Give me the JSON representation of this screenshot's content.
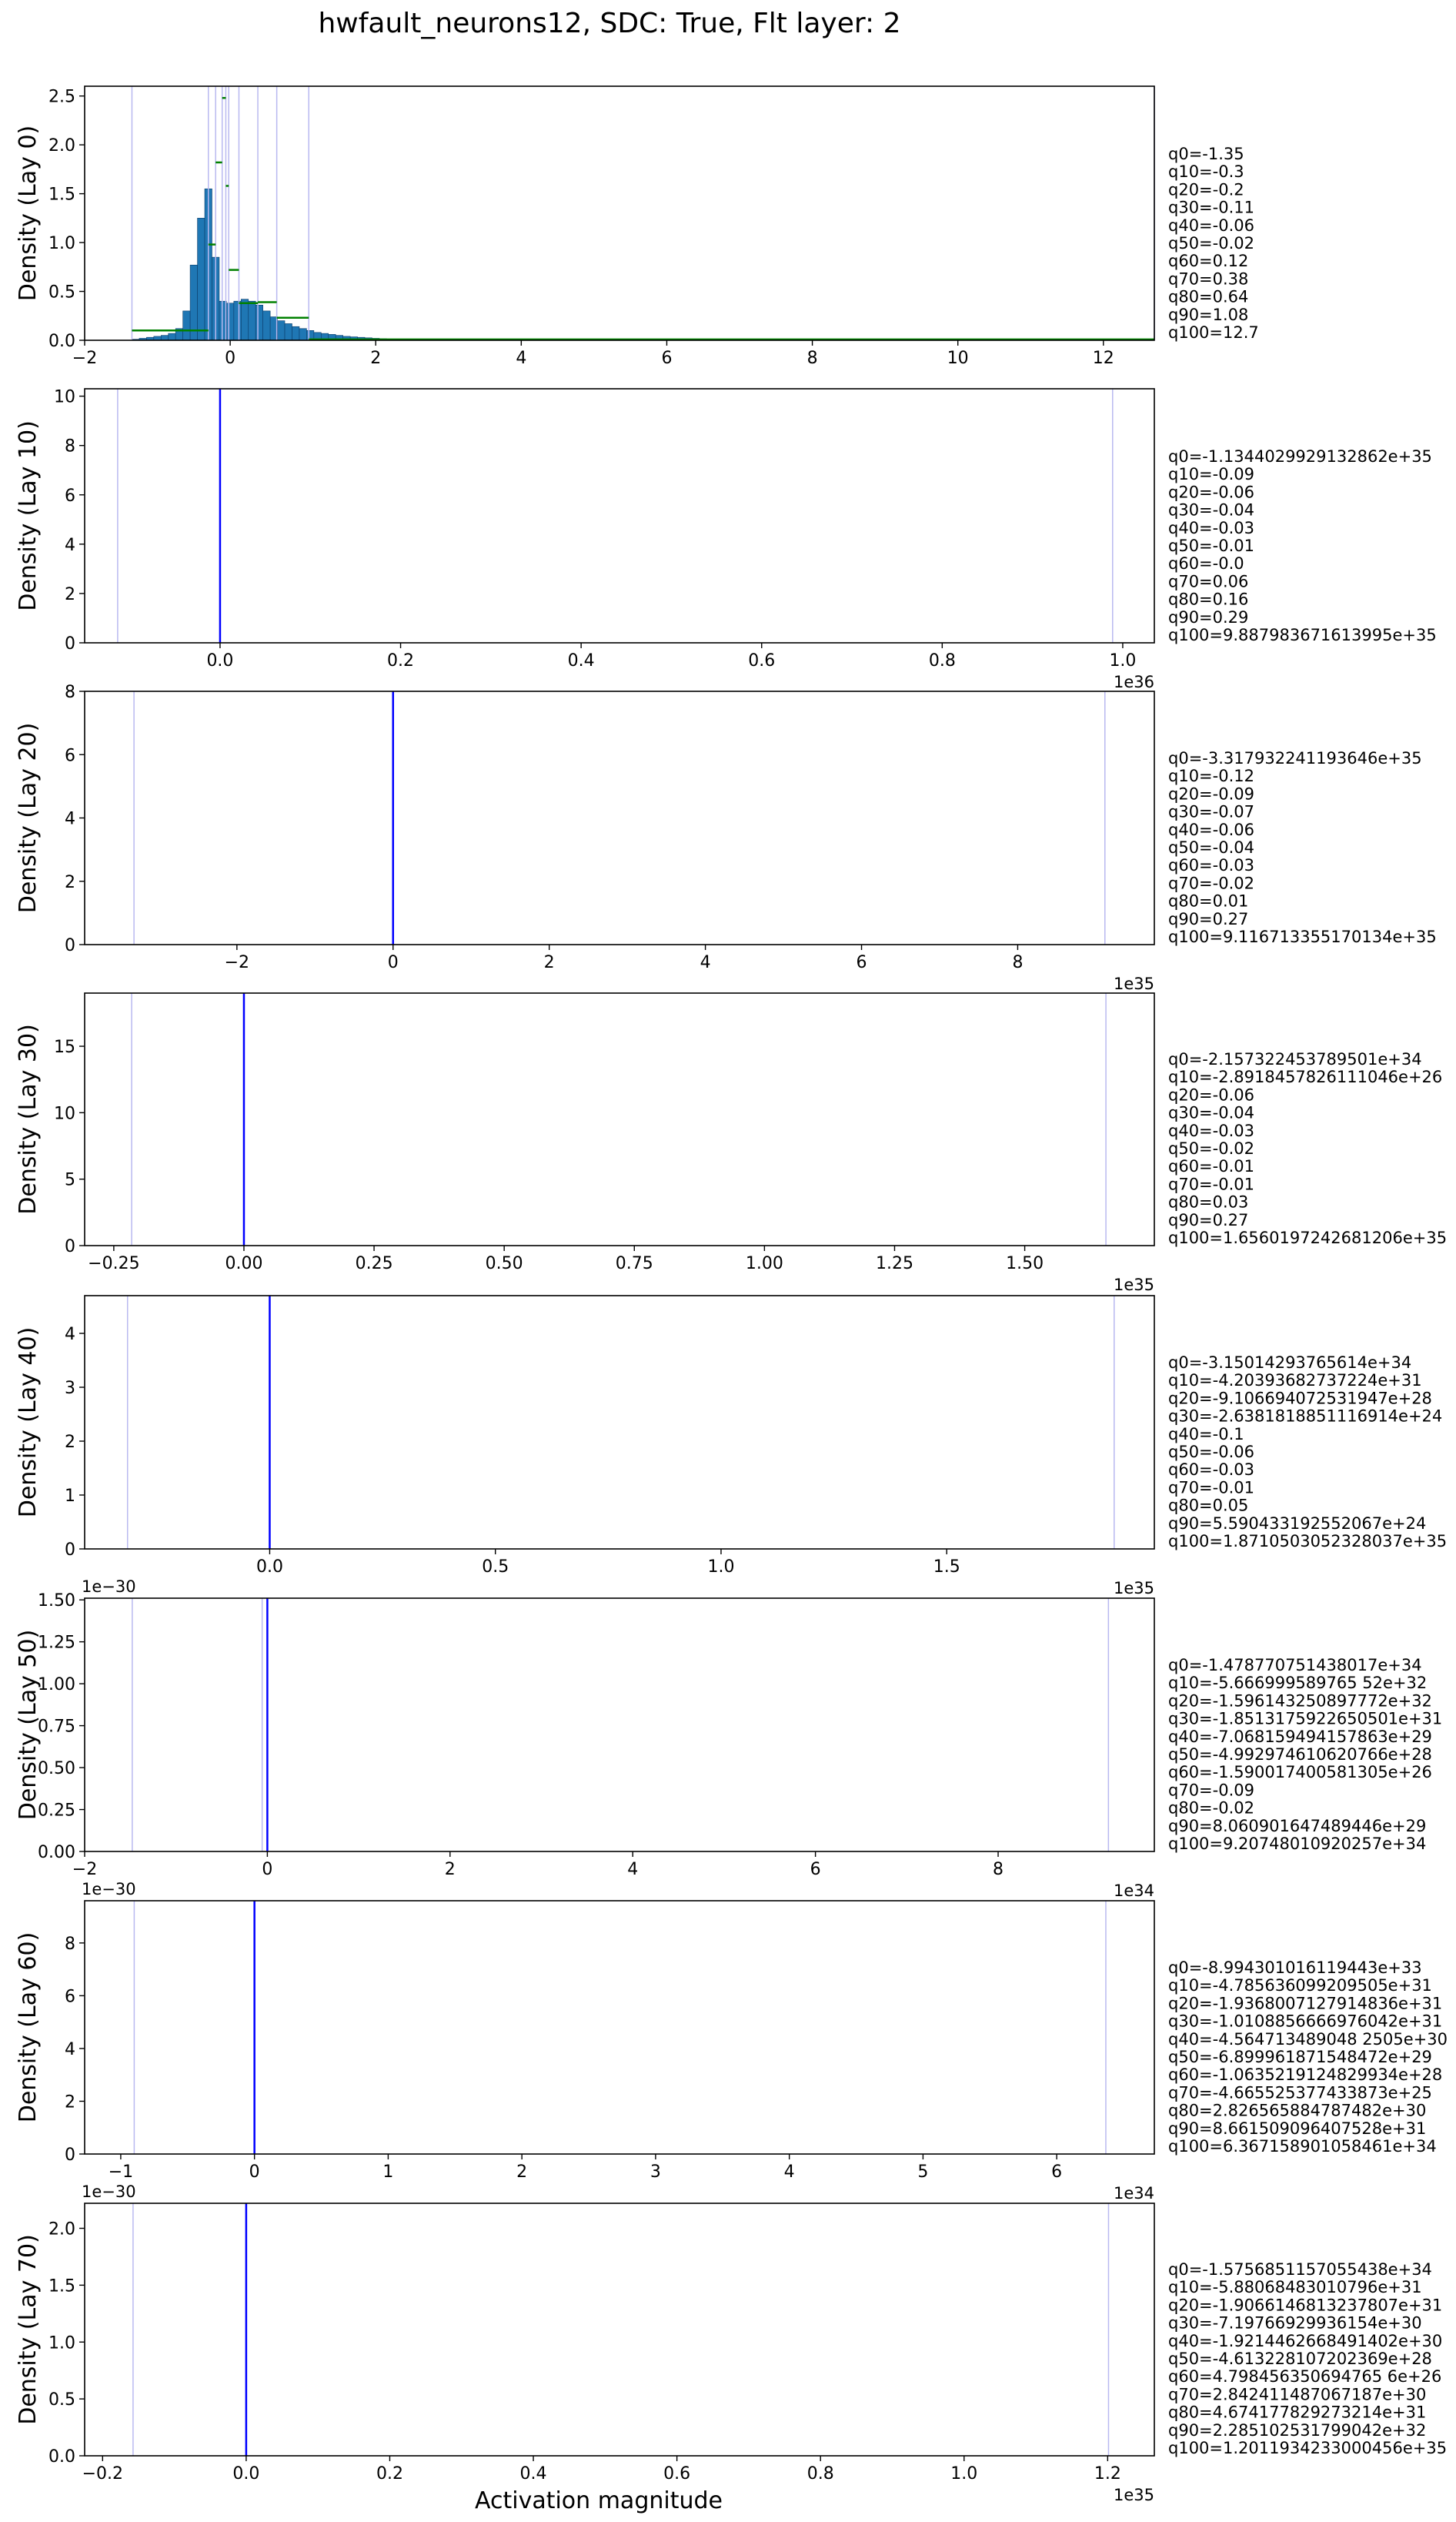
{
  "chart_data": {
    "type": "histogram",
    "title": "hwfault_neurons12, SDC: True, Flt layer: 2",
    "xlabel": "Activation magnitude",
    "colors": {
      "bars": "#1f77b4",
      "bar_edge": "#0b3d6b",
      "green": "#008000",
      "quantile_lines": "#b9b9f0",
      "spike": "#0000ff"
    },
    "panels": [
      {
        "ylabel": "Density (Lay 0)",
        "xlim": [
          -2,
          12.7
        ],
        "ylim": [
          0,
          2.6
        ],
        "xticks": [
          -2,
          0,
          2,
          4,
          6,
          8,
          10,
          12
        ],
        "xtick_labels": [
          "−2",
          "0",
          "2",
          "4",
          "6",
          "8",
          "10",
          "12"
        ],
        "yticks": [
          0,
          0.5,
          1.0,
          1.5,
          2.0,
          2.5
        ],
        "ytick_labels": [
          "0.0",
          "0.5",
          "1.0",
          "1.5",
          "2.0",
          "2.5"
        ],
        "x_offset": "",
        "y_offset": "",
        "quantile_positions": [
          -1.35,
          -0.3,
          -0.2,
          -0.11,
          -0.06,
          -0.02,
          0.12,
          0.38,
          0.64,
          1.08,
          12.7
        ],
        "spike_x": null,
        "bins": {
          "start": -1.35,
          "width": 0.1,
          "values": [
            0.01,
            0.02,
            0.03,
            0.04,
            0.05,
            0.07,
            0.12,
            0.3,
            0.77,
            1.25,
            1.55,
            0.85,
            0.4,
            0.38,
            0.4,
            0.42,
            0.4,
            0.36,
            0.3,
            0.24,
            0.2,
            0.17,
            0.14,
            0.12,
            0.1,
            0.08,
            0.07,
            0.06,
            0.05,
            0.04,
            0.035,
            0.03,
            0.025,
            0.02,
            0.016,
            0.013,
            0.01,
            0.008,
            0.006,
            0.005,
            0.004,
            0.003,
            0.002
          ]
        },
        "density_segments": [
          [
            -1.35,
            -0.3,
            0.1
          ],
          [
            -0.3,
            -0.2,
            0.98
          ],
          [
            -0.2,
            -0.11,
            1.82
          ],
          [
            -0.11,
            -0.06,
            2.48
          ],
          [
            -0.06,
            -0.02,
            1.58
          ],
          [
            -0.02,
            0.12,
            0.72
          ],
          [
            0.12,
            0.38,
            0.38
          ],
          [
            0.38,
            0.64,
            0.39
          ],
          [
            0.64,
            1.08,
            0.23
          ],
          [
            1.08,
            12.7,
            0.009
          ]
        ],
        "quantile_text": [
          "q0=-1.35",
          "q10=-0.3",
          "q20=-0.2",
          "q30=-0.11",
          "q40=-0.06",
          "q50=-0.02",
          "q60=0.12",
          "q70=0.38",
          "q80=0.64",
          "q90=1.08",
          "q100=12.7"
        ]
      },
      {
        "ylabel": "Density (Lay 10)",
        "xlim": [
          -0.15,
          1.035
        ],
        "ylim": [
          0,
          10.3
        ],
        "xticks": [
          0,
          0.2,
          0.4,
          0.6,
          0.8,
          1.0
        ],
        "xtick_labels": [
          "0.0",
          "0.2",
          "0.4",
          "0.6",
          "0.8",
          "1.0"
        ],
        "yticks": [
          0,
          2,
          4,
          6,
          8,
          10
        ],
        "ytick_labels": [
          "0",
          "2",
          "4",
          "6",
          "8",
          "10"
        ],
        "x_offset": "1e36",
        "y_offset": "",
        "quantile_positions": [
          -0.11344,
          0.98879
        ],
        "spike_x": 0,
        "quantile_text": [
          "q0=-1.1344029929132862e+35",
          "q10=-0.09",
          "q20=-0.06",
          "q30=-0.04",
          "q40=-0.03",
          "q50=-0.01",
          "q60=-0.0",
          "q70=0.06",
          "q80=0.16",
          "q90=0.29",
          "q100=9.887983671613995e+35"
        ]
      },
      {
        "ylabel": "Density (Lay 20)",
        "xlim": [
          -3.95,
          9.75
        ],
        "ylim": [
          0,
          8.0
        ],
        "xticks": [
          -2,
          0,
          2,
          4,
          6,
          8
        ],
        "xtick_labels": [
          "−2",
          "0",
          "2",
          "4",
          "6",
          "8"
        ],
        "yticks": [
          0,
          2,
          4,
          6,
          8
        ],
        "ytick_labels": [
          "0",
          "2",
          "4",
          "6",
          "8"
        ],
        "x_offset": "1e35",
        "y_offset": "",
        "quantile_positions": [
          -3.318,
          9.117
        ],
        "spike_x": 0,
        "quantile_text": [
          "q0=-3.317932241193646e+35",
          "q10=-0.12",
          "q20=-0.09",
          "q30=-0.07",
          "q40=-0.06",
          "q50=-0.04",
          "q60=-0.03",
          "q70=-0.02",
          "q80=0.01",
          "q90=0.27",
          "q100=9.116713355170134e+35"
        ]
      },
      {
        "ylabel": "Density (Lay 30)",
        "xlim": [
          -0.306,
          1.749
        ],
        "ylim": [
          0,
          19
        ],
        "xticks": [
          -0.25,
          0,
          0.25,
          0.5,
          0.75,
          1.0,
          1.25,
          1.5
        ],
        "xtick_labels": [
          "−0.25",
          "0.00",
          "0.25",
          "0.50",
          "0.75",
          "1.00",
          "1.25",
          "1.50"
        ],
        "yticks": [
          0,
          5,
          10,
          15
        ],
        "ytick_labels": [
          "0",
          "5",
          "10",
          "15"
        ],
        "x_offset": "1e35",
        "y_offset": "",
        "quantile_positions": [
          -0.2157,
          1.656
        ],
        "spike_x": 0,
        "quantile_text": [
          "q0=-2.157322453789501e+34",
          "q10=-2.8918457826111046e+26",
          "q20=-0.06",
          "q30=-0.04",
          "q40=-0.03",
          "q50=-0.02",
          "q60=-0.01",
          "q70=-0.01",
          "q80=0.03",
          "q90=0.27",
          "q100=1.6560197242681206e+35"
        ]
      },
      {
        "ylabel": "Density (Lay 40)",
        "xlim": [
          -0.41,
          1.96
        ],
        "ylim": [
          0,
          4.7
        ],
        "xticks": [
          0,
          0.5,
          1.0,
          1.5
        ],
        "xtick_labels": [
          "0.0",
          "0.5",
          "1.0",
          "1.5"
        ],
        "yticks": [
          0,
          1,
          2,
          3,
          4
        ],
        "ytick_labels": [
          "0",
          "1",
          "2",
          "3",
          "4"
        ],
        "x_offset": "1e35",
        "y_offset": "",
        "quantile_positions": [
          -0.315,
          1.871
        ],
        "spike_x": 0,
        "quantile_text": [
          "q0=-3.15014293765614e+34",
          "q10=-4.20393682737224e+31",
          "q20=-9.106694072531947e+28",
          "q30=-2.6381818851116914e+24",
          "q40=-0.1",
          "q50=-0.06",
          "q60=-0.03",
          "q70=-0.01",
          "q80=0.05",
          "q90=5.590433192552067e+24",
          "q100=1.8710503052328037e+35"
        ]
      },
      {
        "ylabel": "Density (Lay 50)",
        "xlim": [
          -2.0,
          9.71
        ],
        "ylim": [
          0,
          1.51
        ],
        "xticks": [
          -2,
          0,
          2,
          4,
          6,
          8
        ],
        "xtick_labels": [
          "−2",
          "0",
          "2",
          "4",
          "6",
          "8"
        ],
        "yticks": [
          0,
          0.25,
          0.5,
          0.75,
          1.0,
          1.25,
          1.5
        ],
        "ytick_labels": [
          "0.00",
          "0.25",
          "0.50",
          "0.75",
          "1.00",
          "1.25",
          "1.50"
        ],
        "x_offset": "1e34",
        "y_offset": "1e−30",
        "quantile_positions": [
          -1.4788,
          -0.0567,
          9.2075
        ],
        "spike_x": 0,
        "quantile_text": [
          "q0=-1.478770751438017e+34",
          "q10=-5.666999589765 52e+32",
          "q20=-1.596143250897772e+32",
          "q30=-1.8513175922650501e+31",
          "q40=-7.068159494157863e+29",
          "q50=-4.992974610620766e+28",
          "q60=-1.590017400581305e+26",
          "q70=-0.09",
          "q80=-0.02",
          "q90=8.060901647489446e+29",
          "q100=9.20748010920257e+34"
        ]
      },
      {
        "ylabel": "Density (Lay 60)",
        "xlim": [
          -1.27,
          6.73
        ],
        "ylim": [
          0,
          9.6
        ],
        "xticks": [
          -1,
          0,
          1,
          2,
          3,
          4,
          5,
          6
        ],
        "xtick_labels": [
          "−1",
          "0",
          "1",
          "2",
          "3",
          "4",
          "5",
          "6"
        ],
        "yticks": [
          0,
          2,
          4,
          6,
          8
        ],
        "ytick_labels": [
          "0",
          "2",
          "4",
          "6",
          "8"
        ],
        "x_offset": "1e34",
        "y_offset": "1e−30",
        "quantile_positions": [
          -0.8994,
          6.3672
        ],
        "spike_x": 0,
        "quantile_text": [
          "q0=-8.994301016119443e+33",
          "q10=-4.785636099209505e+31",
          "q20=-1.9368007127914836e+31",
          "q30=-1.0108856666976042e+31",
          "q40=-4.564713489048 2505e+30",
          "q50=-6.899961871548472e+29",
          "q60=-1.0635219124829934e+28",
          "q70=-4.665525377433873e+25",
          "q80=2.826565884787482e+30",
          "q90=8.661509096407528e+31",
          "q100=6.367158901058461e+34"
        ]
      },
      {
        "ylabel": "Density (Lay 70)",
        "xlim": [
          -0.225,
          1.265
        ],
        "ylim": [
          0,
          2.22
        ],
        "xticks": [
          -0.2,
          0,
          0.2,
          0.4,
          0.6,
          0.8,
          1.0,
          1.2
        ],
        "xtick_labels": [
          "−0.2",
          "0.0",
          "0.2",
          "0.4",
          "0.6",
          "0.8",
          "1.0",
          "1.2"
        ],
        "yticks": [
          0,
          0.5,
          1.0,
          1.5,
          2.0
        ],
        "ytick_labels": [
          "0.0",
          "0.5",
          "1.0",
          "1.5",
          "2.0"
        ],
        "x_offset": "1e35",
        "y_offset": "1e−30",
        "quantile_positions": [
          -0.15757,
          1.20119
        ],
        "spike_x": 0,
        "quantile_text": [
          "q0=-1.5756851157055438e+34",
          "q10=-5.88068483010796e+31",
          "q20=-1.9066146813237807e+31",
          "q30=-7.19766929936154e+30",
          "q40=-1.9214462668491402e+30",
          "q50=-4.613228107202369e+28",
          "q60=4.798456350694765 6e+26",
          "q70=2.842411487067187e+30",
          "q80=4.674177829273214e+31",
          "q90=2.285102531799042e+32",
          "q100=1.2011934233000456e+35"
        ]
      }
    ]
  }
}
